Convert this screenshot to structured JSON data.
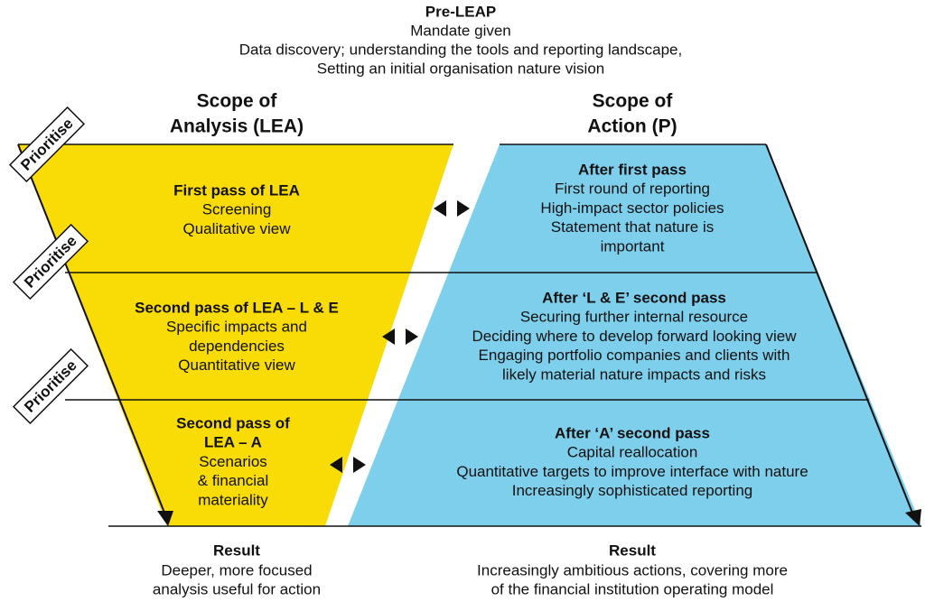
{
  "header": {
    "title": "Pre-LEAP",
    "lines": [
      "Mandate given",
      "Data discovery; understanding the tools and reporting landscape,",
      "Setting an initial organisation nature vision"
    ]
  },
  "columns": [
    {
      "title": [
        "Scope of",
        "Analysis (LEA)"
      ]
    },
    {
      "title": [
        "Scope of",
        "Action (P)"
      ]
    }
  ],
  "prioritise": [
    "Prioritise",
    "Prioritise",
    "Prioritise"
  ],
  "rows": [
    {
      "left": {
        "heading": [
          "First pass of LEA"
        ],
        "lines": [
          "Screening",
          "Qualitative view"
        ]
      },
      "right": {
        "heading": [
          "After first pass"
        ],
        "lines": [
          "First round of reporting",
          "High-impact sector policies",
          "Statement that nature is",
          "important"
        ]
      }
    },
    {
      "left": {
        "heading": [
          "Second pass of LEA – L & E"
        ],
        "lines": [
          "Specific impacts and",
          "dependencies",
          "Quantitative view"
        ]
      },
      "right": {
        "heading": [
          "After ‘L & E’ second pass"
        ],
        "lines": [
          "Securing further internal resource",
          "Deciding where to develop forward looking view",
          "Engaging portfolio companies and clients with",
          "likely material nature impacts and risks"
        ]
      }
    },
    {
      "left": {
        "heading": [
          "Second pass of",
          "LEA – A"
        ],
        "lines": [
          "Scenarios",
          "& financial",
          "materiality"
        ]
      },
      "right": {
        "heading": [
          "After ‘A’ second pass"
        ],
        "lines": [
          "Capital reallocation",
          "Quantitative targets to improve interface with nature",
          "Increasingly sophisticated reporting"
        ]
      }
    }
  ],
  "results": [
    {
      "title": "Result",
      "lines": [
        "Deeper, more focused",
        "analysis useful for action"
      ]
    },
    {
      "title": "Result",
      "lines": [
        "Increasingly ambitious actions, covering more",
        "of the financial institution operating model"
      ]
    }
  ]
}
